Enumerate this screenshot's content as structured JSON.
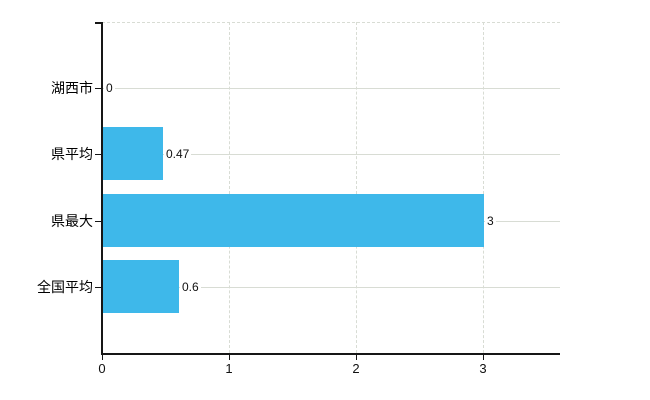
{
  "chart_data": {
    "type": "bar",
    "orientation": "horizontal",
    "title": "",
    "xlabel": "",
    "ylabel": "",
    "categories": [
      "湖西市",
      "県平均",
      "県最大",
      "全国平均"
    ],
    "values": [
      0,
      0.47,
      3,
      0.6
    ],
    "value_labels": [
      "0",
      "0.47",
      "3",
      "0.6"
    ],
    "x_tick_labels": [
      "0",
      "1",
      "2",
      "3"
    ],
    "x_tick_values": [
      0,
      1,
      2,
      3
    ],
    "xlim": [
      0,
      3.6
    ],
    "grid": true,
    "legend": false,
    "gridline_style": {
      "vertical": "dashed",
      "horizontal": "solid"
    },
    "colors": {
      "bar": "#3eb8ea",
      "gridline": "#d8dcd4",
      "axis": "#161616",
      "text": "#000000",
      "background": "#ffffff"
    }
  }
}
